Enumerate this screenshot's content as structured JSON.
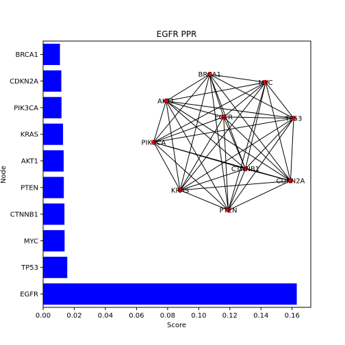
{
  "chart_data": {
    "type": "bar",
    "orientation": "horizontal",
    "title": "EGFR PPR",
    "xlabel": "Score",
    "ylabel": "Node",
    "categories": [
      "EGFR",
      "TP53",
      "MYC",
      "CTNNB1",
      "PTEN",
      "AKT1",
      "KRAS",
      "PIK3CA",
      "CDKN2A",
      "BRCA1"
    ],
    "values": [
      0.163,
      0.0155,
      0.0138,
      0.0137,
      0.0133,
      0.0132,
      0.0128,
      0.0118,
      0.0117,
      0.0108
    ],
    "bar_color": "#0000ff",
    "xlim": [
      0,
      0.172
    ],
    "xticks": [
      "0.00",
      "0.02",
      "0.04",
      "0.06",
      "0.08",
      "0.10",
      "0.12",
      "0.14",
      "0.16"
    ],
    "grid": false,
    "network_inset": {
      "node_color": "#ff0000",
      "edge_color": "#000000",
      "nodes": [
        {
          "label": "BRCA1",
          "x": 0.107,
          "y": 0.875
        },
        {
          "label": "MYC",
          "x": 0.143,
          "y": 0.845
        },
        {
          "label": "AKT1",
          "x": 0.079,
          "y": 0.775
        },
        {
          "label": "EGFR",
          "x": 0.116,
          "y": 0.715
        },
        {
          "label": "TP53",
          "x": 0.161,
          "y": 0.71
        },
        {
          "label": "PIK3CA",
          "x": 0.071,
          "y": 0.62
        },
        {
          "label": "CTNNB1",
          "x": 0.13,
          "y": 0.52
        },
        {
          "label": "CDKN2A",
          "x": 0.159,
          "y": 0.475
        },
        {
          "label": "KRAS",
          "x": 0.088,
          "y": 0.44
        },
        {
          "label": "PTEN",
          "x": 0.119,
          "y": 0.365
        }
      ]
    }
  }
}
